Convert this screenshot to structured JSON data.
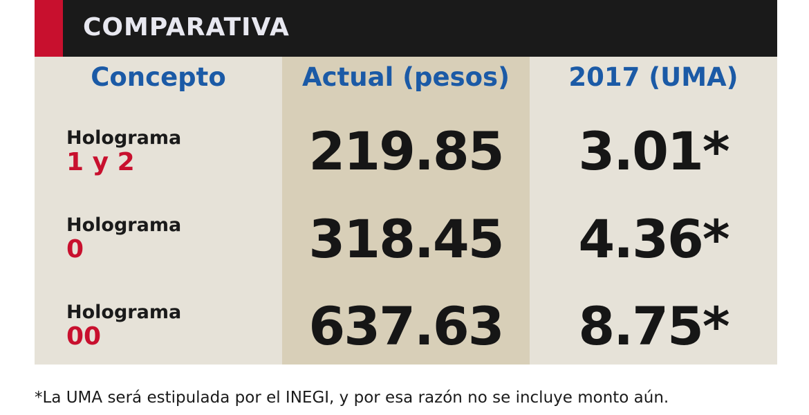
{
  "header": {
    "title": "COMPARATIVA",
    "accent_color": "#c8102e",
    "background_color": "#1a1a1a"
  },
  "table": {
    "columns": [
      {
        "label": "Concepto"
      },
      {
        "label": "Actual (pesos)"
      },
      {
        "label": "2017 (UMA)"
      }
    ],
    "rows": [
      {
        "name": "Holograma",
        "level": "1 y 2",
        "actual": "219.85",
        "uma": "3.01*"
      },
      {
        "name": "Holograma",
        "level": "0",
        "actual": "318.45",
        "uma": "4.36*"
      },
      {
        "name": "Holograma",
        "level": "00",
        "actual": "637.63",
        "uma": "8.75*"
      }
    ],
    "header_color": "#1b5aa6",
    "level_color": "#c8102e"
  },
  "footnote": "*La UMA será estipulada por el INEGI, y por esa razón no se incluye monto aún."
}
